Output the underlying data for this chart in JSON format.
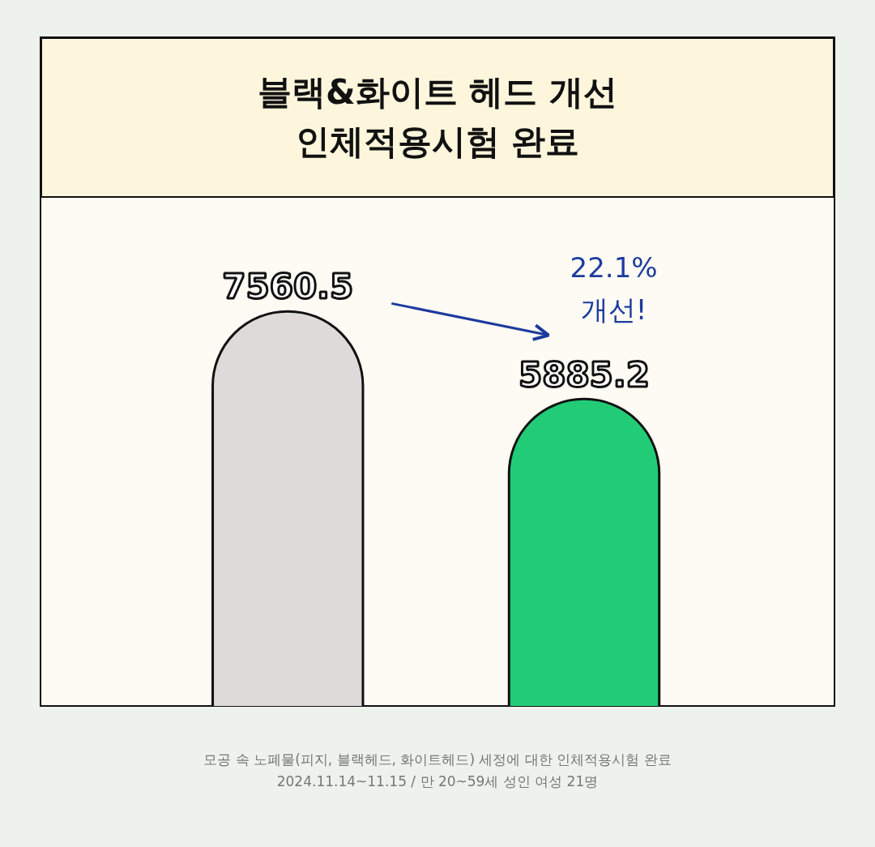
{
  "chart_data": {
    "type": "bar",
    "title": "블랙&화이트 헤드 개선\n인체적용시험 완료",
    "categories": [
      null,
      null
    ],
    "values": [
      7560.5,
      5885.2
    ],
    "colors": [
      "#dedada",
      "#22cc77"
    ],
    "data_labels": true,
    "annotations": [
      "22.1%\n개선!",
      "모공 속 노폐물(피지, 블랙헤드, 화이트헤드) 세정에 대한 인체적용시험 완료",
      "2024.11.14~11.15 / 만 20~59세 성인 여성 21명"
    ]
  }
}
